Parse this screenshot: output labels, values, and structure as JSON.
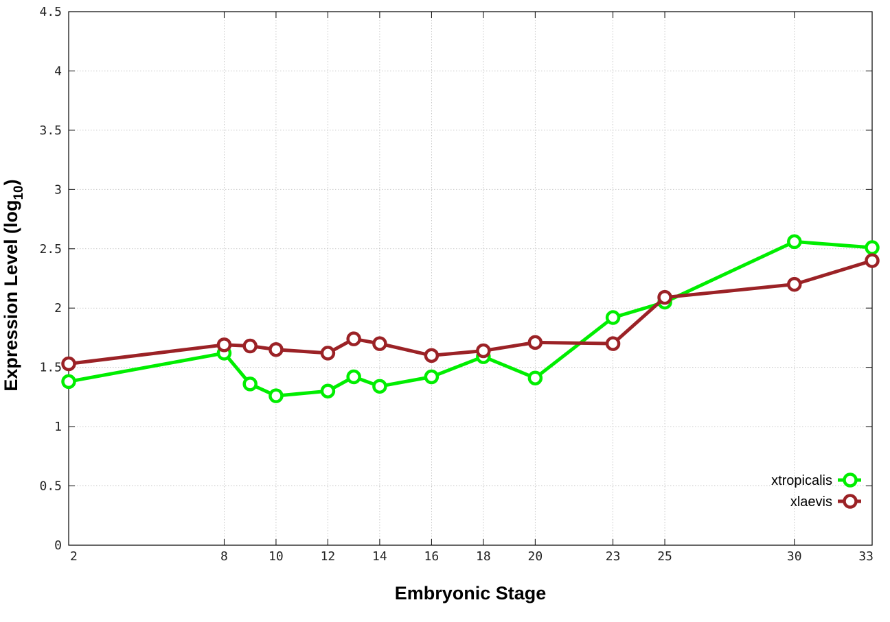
{
  "chart_data": {
    "type": "line",
    "xlabel": "Embryonic Stage",
    "ylabel": "Expression Level (log",
    "ylabel_subscript": "10",
    "ylabel_suffix": ")",
    "x_ticks": [
      2,
      8,
      10,
      12,
      14,
      16,
      18,
      20,
      23,
      25,
      30,
      33
    ],
    "y_ticks": [
      "0",
      "0.5",
      "1",
      "1.5",
      "2",
      "2.5",
      "3",
      "3.5",
      "4",
      "4.5"
    ],
    "xlim": [
      2,
      33
    ],
    "ylim": [
      0,
      4.5
    ],
    "grid": true,
    "legend_position": "bottom-right",
    "x": [
      2,
      8,
      9,
      10,
      12,
      13,
      14,
      16,
      18,
      20,
      23,
      25,
      30,
      33
    ],
    "series": [
      {
        "name": "xtropicalis",
        "color": "#00ee00",
        "values": [
          1.38,
          1.62,
          1.36,
          1.26,
          1.3,
          1.42,
          1.34,
          1.42,
          1.59,
          1.41,
          1.92,
          2.05,
          2.56,
          2.51
        ]
      },
      {
        "name": "xlaevis",
        "color": "#9b2226",
        "values": [
          1.53,
          1.69,
          1.68,
          1.65,
          1.62,
          1.74,
          1.7,
          1.6,
          1.64,
          1.71,
          1.7,
          2.09,
          2.2,
          2.4
        ]
      }
    ]
  }
}
